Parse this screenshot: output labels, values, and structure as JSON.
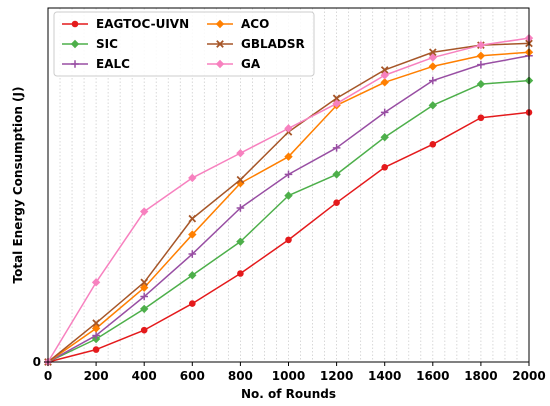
{
  "chart_data": {
    "type": "line",
    "xlabel": "No. of Rounds",
    "ylabel": "Total Energy Consumption (J)",
    "xlim": [
      0,
      2000
    ],
    "ylim": [
      0,
      100
    ],
    "x_ticks": [
      0,
      200,
      400,
      600,
      800,
      1000,
      1200,
      1400,
      1600,
      1800,
      2000
    ],
    "y_ticks": [
      0
    ],
    "grid": "vertical-dotted",
    "legend_position": "top-left",
    "x": [
      0,
      200,
      400,
      600,
      800,
      1000,
      1200,
      1400,
      1600,
      1800,
      2000
    ],
    "series": [
      {
        "name": "EAGTOC-UIVN",
        "color": "#e41a1c",
        "marker": "circle",
        "values": [
          0,
          3.5,
          9,
          16.5,
          25,
          34.5,
          45,
          55,
          61.5,
          69,
          70.5
        ]
      },
      {
        "name": "SIC",
        "color": "#4daf4a",
        "marker": "diamond",
        "values": [
          0,
          6.5,
          15,
          24.5,
          34,
          47,
          53,
          63.5,
          72.5,
          78.5,
          79.5
        ]
      },
      {
        "name": "EALC",
        "color": "#984ea3",
        "marker": "plus",
        "values": [
          0,
          7.5,
          18.5,
          30.5,
          43.5,
          53,
          60.5,
          70.5,
          79.5,
          84,
          86.5
        ]
      },
      {
        "name": "ACO",
        "color": "#ff7f00",
        "marker": "diamond",
        "values": [
          0,
          9.5,
          21,
          36,
          50.5,
          58,
          72.5,
          79,
          83.5,
          86.5,
          87.5
        ]
      },
      {
        "name": "GBLADSR",
        "color": "#a65628",
        "marker": "x",
        "values": [
          0,
          11,
          22.5,
          40.5,
          51.5,
          65,
          74.5,
          82.5,
          87.5,
          89.5,
          90
        ]
      },
      {
        "name": "GA",
        "color": "#f781bf",
        "marker": "diamond",
        "values": [
          0,
          22.5,
          42.5,
          52,
          59,
          66,
          73,
          81,
          86,
          89.5,
          91.5
        ]
      }
    ]
  }
}
